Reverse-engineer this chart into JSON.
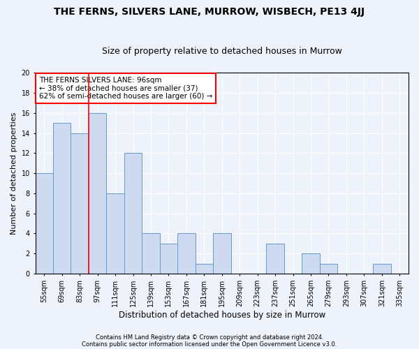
{
  "title": "THE FERNS, SILVERS LANE, MURROW, WISBECH, PE13 4JJ",
  "subtitle": "Size of property relative to detached houses in Murrow",
  "xlabel": "Distribution of detached houses by size in Murrow",
  "ylabel": "Number of detached properties",
  "categories": [
    "55sqm",
    "69sqm",
    "83sqm",
    "97sqm",
    "111sqm",
    "125sqm",
    "139sqm",
    "153sqm",
    "167sqm",
    "181sqm",
    "195sqm",
    "209sqm",
    "223sqm",
    "237sqm",
    "251sqm",
    "265sqm",
    "279sqm",
    "293sqm",
    "307sqm",
    "321sqm",
    "335sqm"
  ],
  "values": [
    10,
    15,
    14,
    16,
    8,
    12,
    4,
    3,
    4,
    1,
    4,
    0,
    0,
    3,
    0,
    2,
    1,
    0,
    0,
    1,
    0
  ],
  "bar_color": "#cddaf0",
  "bar_edge_color": "#6699cc",
  "red_line_x": 2.5,
  "annotation_text": "THE FERNS SILVERS LANE: 96sqm\n← 38% of detached houses are smaller (37)\n62% of semi-detached houses are larger (60) →",
  "annotation_box_facecolor": "white",
  "annotation_box_edgecolor": "red",
  "ylim": [
    0,
    20
  ],
  "yticks": [
    0,
    2,
    4,
    6,
    8,
    10,
    12,
    14,
    16,
    18,
    20
  ],
  "footnote1": "Contains HM Land Registry data © Crown copyright and database right 2024.",
  "footnote2": "Contains public sector information licensed under the Open Government Licence v3.0.",
  "background_color": "#eef2fa",
  "grid_color": "white",
  "title_fontsize": 10,
  "subtitle_fontsize": 9,
  "xlabel_fontsize": 8.5,
  "ylabel_fontsize": 8,
  "tick_fontsize": 7,
  "annotation_fontsize": 7.5,
  "footnote_fontsize": 6
}
